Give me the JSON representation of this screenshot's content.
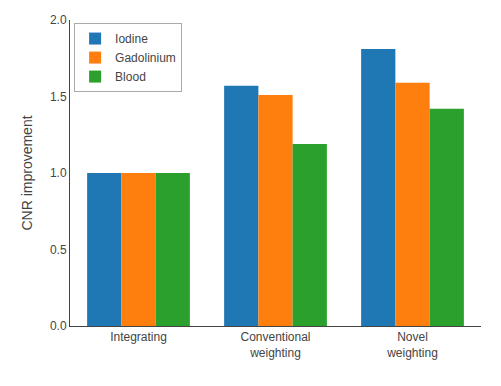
{
  "chart_data": {
    "type": "bar",
    "categories": [
      "Integrating",
      "Conventional\nweighting",
      "Novel\nweighting"
    ],
    "series": [
      {
        "name": "Iodine",
        "values": [
          1.0,
          1.57,
          1.81
        ]
      },
      {
        "name": "Gadolinium",
        "values": [
          1.0,
          1.51,
          1.59
        ]
      },
      {
        "name": "Blood",
        "values": [
          1.0,
          1.19,
          1.42
        ]
      }
    ],
    "ylabel": "CNR improvement",
    "ylim": [
      0.0,
      2.0
    ],
    "yticks": [
      {
        "value": 0.0,
        "label": "0.0"
      },
      0.5,
      {
        "value": 1.0,
        "label": "1.0"
      },
      1.5,
      {
        "value": 2.0,
        "label": "2.0"
      }
    ],
    "grid": false,
    "legend": "upper left"
  }
}
